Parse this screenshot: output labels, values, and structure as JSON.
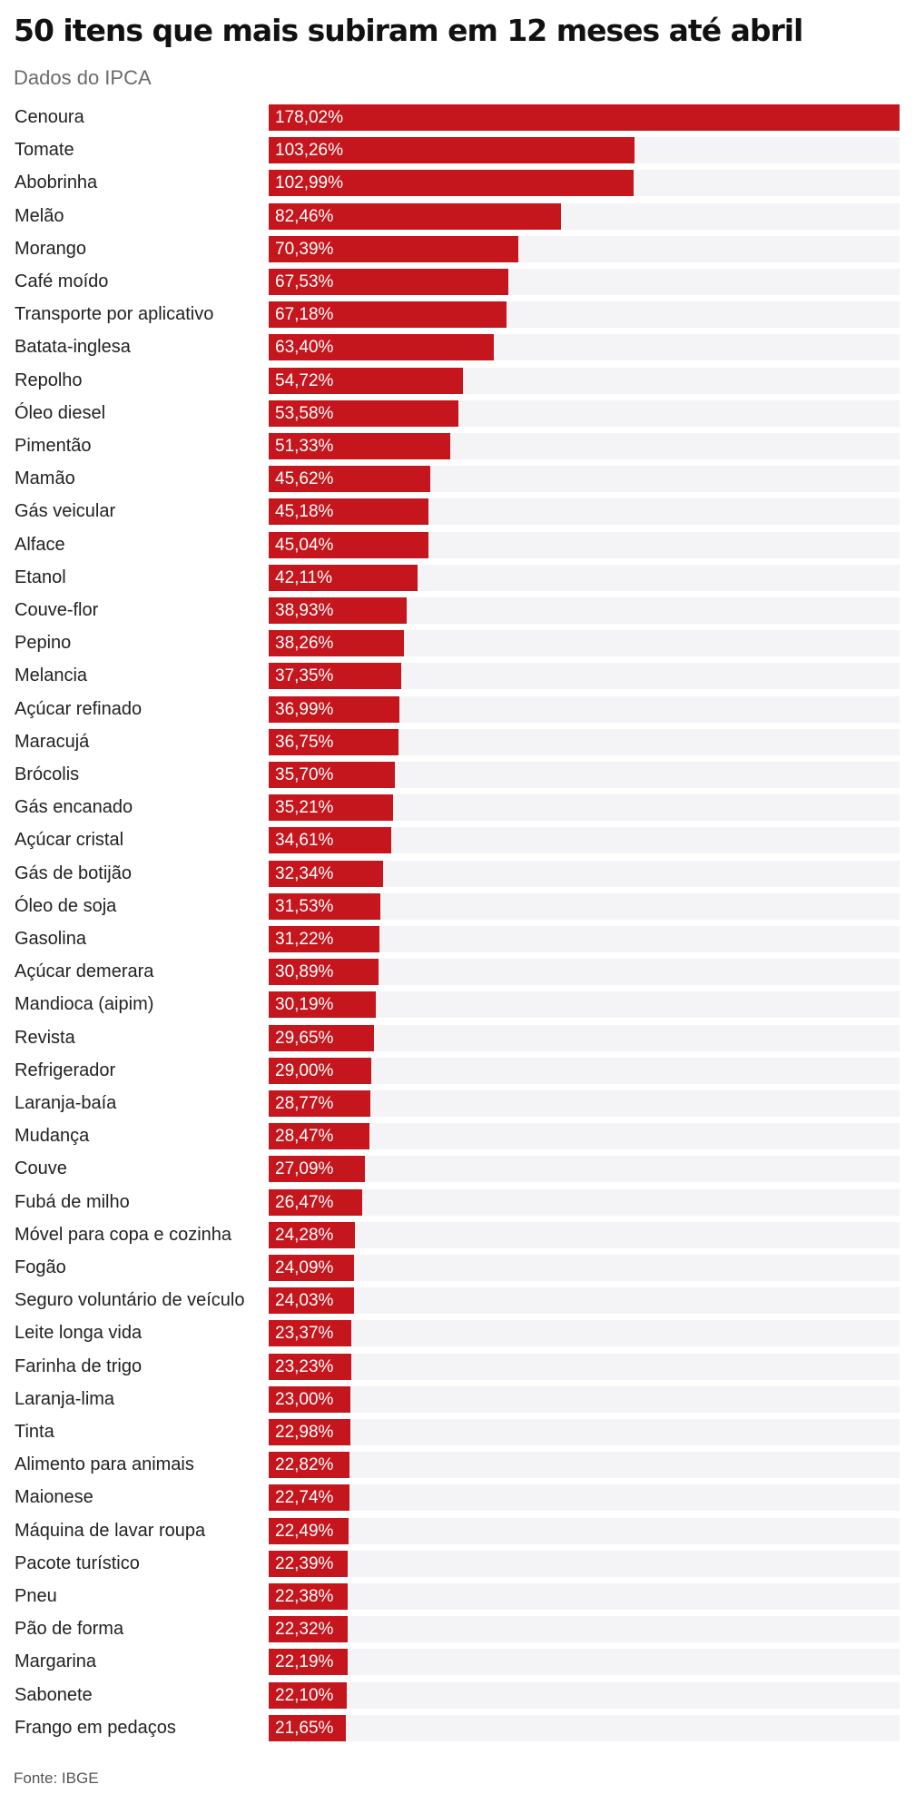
{
  "header": {
    "title": "50 itens que mais subiram em 12 meses até abril",
    "subtitle": "Dados do IPCA"
  },
  "footer": {
    "source": "Fonte: IBGE"
  },
  "colors": {
    "bar": "#c4161c",
    "track": "#f4f3f5"
  },
  "chart_data": {
    "type": "bar",
    "orientation": "horizontal",
    "categories": [
      "Cenoura",
      "Tomate",
      "Abobrinha",
      "Melão",
      "Morango",
      "Café moído",
      "Transporte por aplicativo",
      "Batata-inglesa",
      "Repolho",
      "Óleo diesel",
      "Pimentão",
      "Mamão",
      "Gás veicular",
      "Alface",
      "Etanol",
      "Couve-flor",
      "Pepino",
      "Melancia",
      "Açúcar refinado",
      "Maracujá",
      "Brócolis",
      "Gás encanado",
      "Açúcar cristal",
      "Gás de botijão",
      "Óleo de soja",
      "Gasolina",
      "Açúcar demerara",
      "Mandioca (aipim)",
      "Revista",
      "Refrigerador",
      "Laranja-baía",
      "Mudança",
      "Couve",
      "Fubá de milho",
      "Móvel para copa e cozinha",
      "Fogão",
      "Seguro voluntário de veículo",
      "Leite longa vida",
      "Farinha de trigo",
      "Laranja-lima",
      "Tinta",
      "Alimento para animais",
      "Maionese",
      "Máquina de lavar roupa",
      "Pacote turístico",
      "Pneu",
      "Pão de forma",
      "Margarina",
      "Sabonete",
      "Frango em pedaços"
    ],
    "values": [
      178.02,
      103.26,
      102.99,
      82.46,
      70.39,
      67.53,
      67.18,
      63.4,
      54.72,
      53.58,
      51.33,
      45.62,
      45.18,
      45.04,
      42.11,
      38.93,
      38.26,
      37.35,
      36.99,
      36.75,
      35.7,
      35.21,
      34.61,
      32.34,
      31.53,
      31.22,
      30.89,
      30.19,
      29.65,
      29.0,
      28.77,
      28.47,
      27.09,
      26.47,
      24.28,
      24.09,
      24.03,
      23.37,
      23.23,
      23.0,
      22.98,
      22.82,
      22.74,
      22.49,
      22.39,
      22.38,
      22.32,
      22.19,
      22.1,
      21.65
    ],
    "value_labels": [
      "178,02%",
      "103,26%",
      "102,99%",
      "82,46%",
      "70,39%",
      "67,53%",
      "67,18%",
      "63,40%",
      "54,72%",
      "53,58%",
      "51,33%",
      "45,62%",
      "45,18%",
      "45,04%",
      "42,11%",
      "38,93%",
      "38,26%",
      "37,35%",
      "36,99%",
      "36,75%",
      "35,70%",
      "35,21%",
      "34,61%",
      "32,34%",
      "31,53%",
      "31,22%",
      "30,89%",
      "30,19%",
      "29,65%",
      "29,00%",
      "28,77%",
      "28,47%",
      "27,09%",
      "26,47%",
      "24,28%",
      "24,09%",
      "24,03%",
      "23,37%",
      "23,23%",
      "23,00%",
      "22,98%",
      "22,82%",
      "22,74%",
      "22,49%",
      "22,39%",
      "22,38%",
      "22,32%",
      "22,19%",
      "22,10%",
      "21,65%"
    ],
    "unit": "%",
    "xlim": [
      0,
      178.02
    ],
    "grid": false,
    "legend": "none"
  }
}
